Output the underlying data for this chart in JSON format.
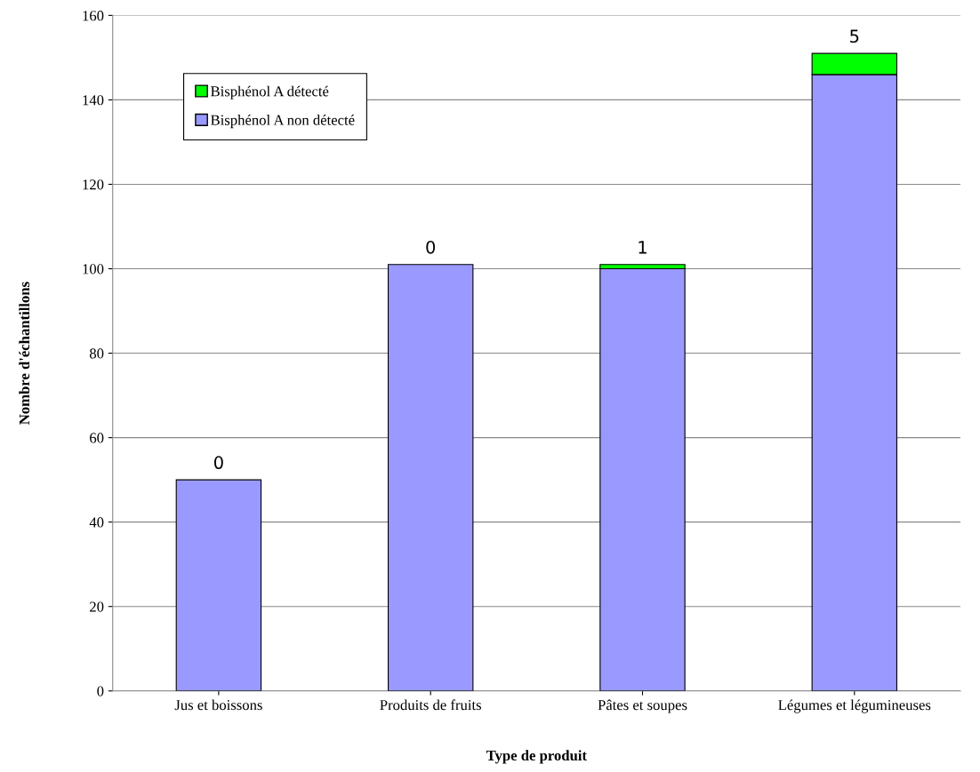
{
  "chart_data": {
    "type": "bar",
    "stacked": true,
    "xlabel": "Type de produit",
    "ylabel": "Nombre d'échantillons",
    "categories": [
      "Jus et boissons",
      "Produits de fruits",
      "Pâtes et soupes",
      "Légumes et légumineuses"
    ],
    "series": [
      {
        "name": "Bisphénol A non détecté",
        "color": "#9999ff",
        "values": [
          50,
          101,
          100,
          146
        ]
      },
      {
        "name": "Bisphénol A détecté",
        "color": "#00ff00",
        "values": [
          0,
          0,
          1,
          5
        ],
        "value_labels": [
          "0",
          "0",
          "1",
          "5"
        ]
      }
    ],
    "ylim": [
      0,
      160
    ],
    "yticks": [
      0,
      20,
      40,
      60,
      80,
      100,
      120,
      140,
      160
    ],
    "grid": "y",
    "legend": "top left"
  }
}
